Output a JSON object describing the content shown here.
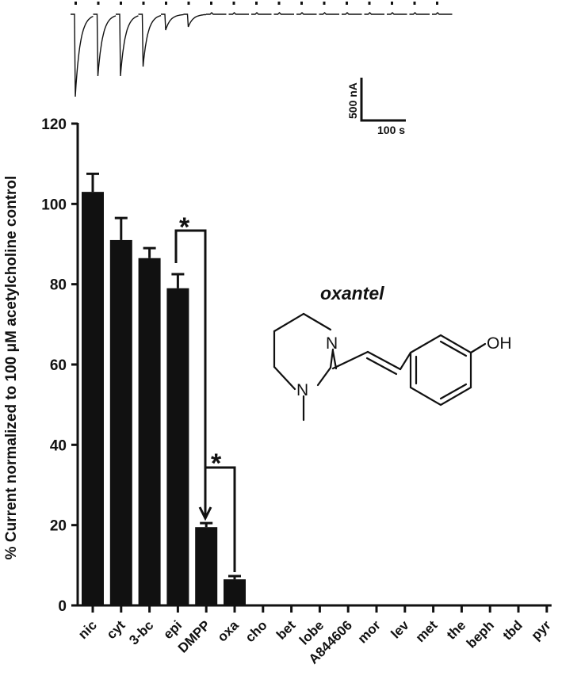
{
  "chart_data": {
    "type": "bar",
    "ylabel": "% Current normalized to 100 μM acetylcholine control",
    "ylim": [
      0,
      120
    ],
    "yticks": [
      "0",
      "20",
      "40",
      "60",
      "80",
      "100",
      "120"
    ],
    "categories": [
      "nic",
      "cyt",
      "3-bc",
      "epi",
      "DMPP",
      "oxa",
      "cho",
      "bet",
      "lobe",
      "A844606",
      "mor",
      "lev",
      "met",
      "the",
      "beph",
      "tbd",
      "pyr"
    ],
    "values": [
      103,
      91,
      86.5,
      79,
      19.5,
      6.5,
      0,
      0,
      0,
      0,
      0,
      0,
      0,
      0,
      0,
      0,
      0
    ],
    "errors": [
      4.5,
      5.5,
      2.5,
      3.5,
      1.0,
      0.8,
      0,
      0,
      0,
      0,
      0,
      0,
      0,
      0,
      0,
      0,
      0
    ],
    "bar_color": "#111111",
    "significance": [
      {
        "from": "epi",
        "to": "DMPP",
        "label": "*"
      },
      {
        "from": "DMPP",
        "to": "oxa",
        "label": "*"
      }
    ]
  },
  "inset_traces": {
    "scale_bar": {
      "current_label": "500 nA",
      "time_label": "100 s"
    },
    "application_marker_count": 17
  },
  "structure": {
    "title": "oxantel",
    "atoms": {
      "n_top": "N",
      "n_ring": "N",
      "hydroxyl": "OH"
    }
  }
}
